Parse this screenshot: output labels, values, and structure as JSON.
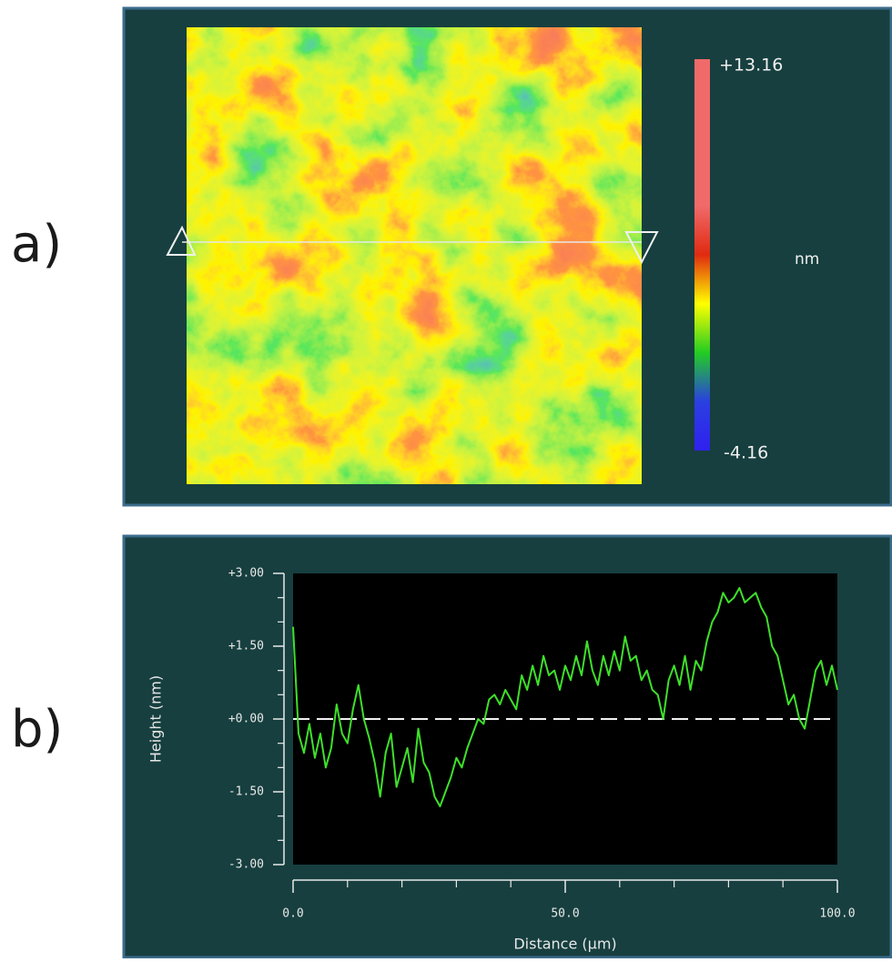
{
  "chart_data": [
    {
      "type": "heatmap",
      "panel_label": "a)",
      "colorbar": {
        "max": {
          "value": 13.16,
          "label": "+13.16"
        },
        "min": {
          "value": -4.16,
          "label": "-4.16"
        },
        "unit": "nm",
        "colors": [
          "#f06a6a",
          "#f06a6a",
          "#f06a6a",
          "#f06a6a",
          "#e02a10",
          "#ffff00",
          "#22cc22",
          "#2a40e0",
          "#3020f0"
        ]
      }
    },
    {
      "type": "line",
      "panel_label": "b)",
      "xlabel": "Distance (µm)",
      "ylabel": "Height (nm)",
      "color": "#3ee02a",
      "reference_line": 0,
      "xlim": [
        0,
        100
      ],
      "ylim": [
        -3,
        3
      ],
      "xticks": [
        {
          "value": 0,
          "label": "0.0"
        },
        {
          "value": 50,
          "label": "50.0"
        },
        {
          "value": 100,
          "label": "100.0"
        }
      ],
      "xminor_ticks": [
        10,
        20,
        30,
        40,
        60,
        70,
        80,
        90
      ],
      "yticks": [
        {
          "value": 3,
          "label": "+3.00"
        },
        {
          "value": 1.5,
          "label": "+1.50"
        },
        {
          "value": 0,
          "label": "+0.00"
        },
        {
          "value": -1.5,
          "label": "-1.50"
        },
        {
          "value": -3,
          "label": "-3.00"
        }
      ],
      "yminor_ticks": [
        2.5,
        2,
        1,
        0.5,
        -0.5,
        -1,
        -2,
        -2.5
      ],
      "x": [
        0,
        1,
        2,
        3,
        4,
        5,
        6,
        7,
        8,
        9,
        10,
        11,
        12,
        13,
        14,
        15,
        16,
        17,
        18,
        19,
        20,
        21,
        22,
        23,
        24,
        25,
        26,
        27,
        28,
        29,
        30,
        31,
        32,
        33,
        34,
        35,
        36,
        37,
        38,
        39,
        40,
        41,
        42,
        43,
        44,
        45,
        46,
        47,
        48,
        49,
        50,
        51,
        52,
        53,
        54,
        55,
        56,
        57,
        58,
        59,
        60,
        61,
        62,
        63,
        64,
        65,
        66,
        67,
        68,
        69,
        70,
        71,
        72,
        73,
        74,
        75,
        76,
        77,
        78,
        79,
        80,
        81,
        82,
        83,
        84,
        85,
        86,
        87,
        88,
        89,
        90,
        91,
        92,
        93,
        94,
        95,
        96,
        97,
        98,
        99,
        100
      ],
      "values": [
        1.9,
        -0.3,
        -0.7,
        -0.1,
        -0.8,
        -0.3,
        -1.0,
        -0.6,
        0.3,
        -0.3,
        -0.5,
        0.2,
        0.7,
        0.0,
        -0.4,
        -0.9,
        -1.6,
        -0.7,
        -0.3,
        -1.4,
        -1.0,
        -0.6,
        -1.3,
        -0.2,
        -0.9,
        -1.1,
        -1.6,
        -1.8,
        -1.5,
        -1.2,
        -0.8,
        -1.0,
        -0.6,
        -0.3,
        0.0,
        -0.1,
        0.4,
        0.5,
        0.3,
        0.6,
        0.4,
        0.2,
        0.9,
        0.6,
        1.1,
        0.7,
        1.3,
        0.9,
        1.0,
        0.6,
        1.1,
        0.8,
        1.3,
        0.9,
        1.6,
        1.0,
        0.7,
        1.3,
        0.9,
        1.4,
        1.0,
        1.7,
        1.2,
        1.3,
        0.8,
        1.0,
        0.6,
        0.5,
        0.0,
        0.8,
        1.1,
        0.7,
        1.3,
        0.6,
        1.2,
        1.0,
        1.6,
        2.0,
        2.2,
        2.6,
        2.4,
        2.5,
        2.7,
        2.4,
        2.5,
        2.6,
        2.3,
        2.1,
        1.5,
        1.3,
        0.8,
        0.3,
        0.5,
        0.0,
        -0.2,
        0.4,
        1.0,
        1.2,
        0.7,
        1.1,
        0.6
      ]
    }
  ]
}
